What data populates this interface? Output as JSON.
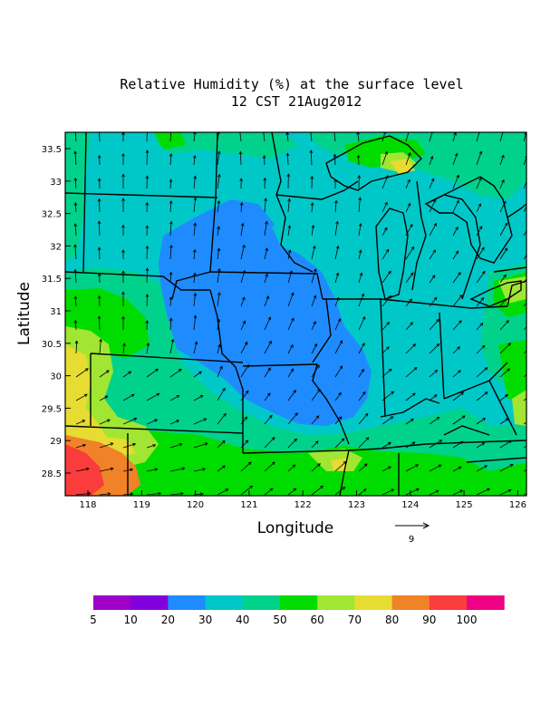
{
  "title": {
    "line1": "Relative Humidity (%) at the surface level",
    "line2": "12 CST 21Aug2012"
  },
  "axes": {
    "xlabel": "Longitude",
    "ylabel": "Latitude",
    "x_ticks": [
      "118",
      "119",
      "120",
      "121",
      "122",
      "123",
      "124",
      "125",
      "126"
    ],
    "y_ticks": [
      "28.5",
      "29",
      "29.5",
      "30",
      "30.5",
      "31",
      "31.5",
      "32",
      "32.5",
      "33",
      "33.5"
    ]
  },
  "vector_key": {
    "value": "9"
  },
  "colorbar": {
    "labels": [
      "5",
      "10",
      "20",
      "30",
      "40",
      "50",
      "60",
      "70",
      "80",
      "90",
      "100"
    ],
    "colors": [
      "#a000c8",
      "#8200dc",
      "#1e8cff",
      "#00c8c8",
      "#00d28c",
      "#00dc00",
      "#a0e632",
      "#e6dc32",
      "#f08228",
      "#fa3c3c",
      "#f00082"
    ]
  },
  "map": {
    "background_color": "#00c8c8",
    "fill_color_names": [
      "cyan",
      "blue",
      "teal",
      "green",
      "lightgreen",
      "yellow",
      "orange",
      "red"
    ]
  }
}
